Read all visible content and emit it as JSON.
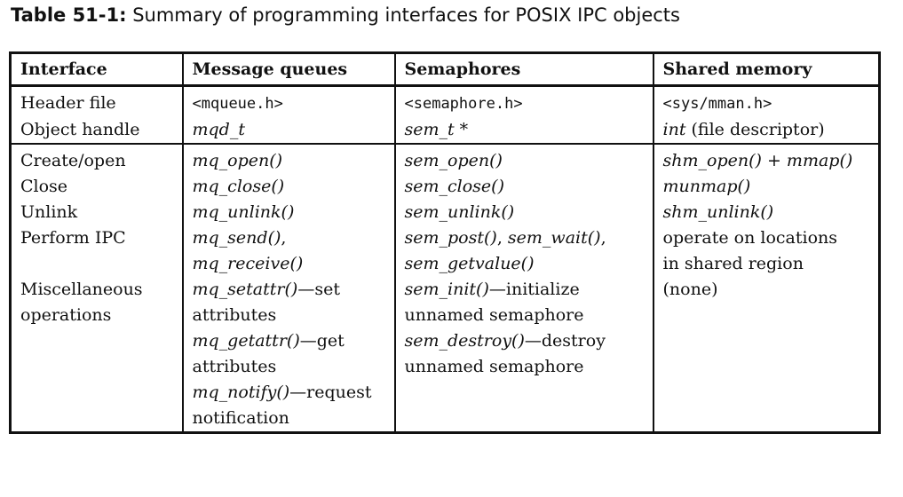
{
  "caption": {
    "label": "Table 51-1:",
    "text": " Summary of programming interfaces for POSIX IPC objects"
  },
  "headers": [
    "Interface",
    "Message queues",
    "Semaphores",
    "Shared memory"
  ],
  "rows": {
    "header_file": {
      "label": "Header file",
      "mq": "<mqueue.h>",
      "sem": "<semaphore.h>",
      "shm": "<sys/mman.h>"
    },
    "object_handle": {
      "label": "Object handle",
      "mq": "mqd_t",
      "sem": "sem_t *",
      "shm_fn": "int",
      "shm_rest": " (file descriptor)"
    },
    "create_open": {
      "label": "Create/open",
      "mq": "mq_open()",
      "sem": "sem_open()",
      "shm_fn1": "shm_open()",
      "shm_plus": " + ",
      "shm_fn2": "mmap()"
    },
    "close": {
      "label": "Close",
      "mq": "mq_close()",
      "sem": "sem_close()",
      "shm": "munmap()"
    },
    "unlink": {
      "label": "Unlink",
      "mq": "mq_unlink()",
      "sem": "sem_unlink()",
      "shm": "shm_unlink()"
    },
    "perform_ipc": {
      "label": "Perform IPC",
      "mq_line1": "mq_send()",
      "mq_line1_suffix": ",",
      "mq_line2": "mq_receive()",
      "sem_fn1": "sem_post()",
      "sem_sep": ", ",
      "sem_fn2": "sem_wait()",
      "sem_comma": ",",
      "sem_line2": "sem_getvalue()",
      "shm_line1": "operate on locations",
      "shm_line2": "in shared region"
    },
    "misc": {
      "label_line1": "Miscellaneous",
      "label_line2": "operations",
      "mq_fn1": "mq_setattr()",
      "mq_desc1a": "—set",
      "mq_desc1b": "attributes",
      "mq_fn2": "mq_getattr()",
      "mq_desc2a": "—get",
      "mq_desc2b": "attributes",
      "mq_fn3": "mq_notify()",
      "mq_desc3a": "—request",
      "mq_desc3b": "notification",
      "sem_fn1": "sem_init()",
      "sem_desc1a": "—initialize",
      "sem_desc1b": "unnamed semaphore",
      "sem_fn2": "sem_destroy()",
      "sem_desc2a": "—destroy",
      "sem_desc2b": "unnamed semaphore",
      "shm": "(none)"
    }
  }
}
